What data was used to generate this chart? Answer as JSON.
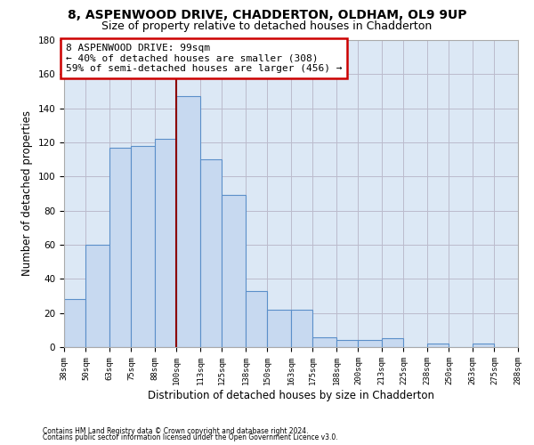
{
  "title1": "8, ASPENWOOD DRIVE, CHADDERTON, OLDHAM, OL9 9UP",
  "title2": "Size of property relative to detached houses in Chadderton",
  "xlabel": "Distribution of detached houses by size in Chadderton",
  "ylabel": "Number of detached properties",
  "footnote1": "Contains HM Land Registry data © Crown copyright and database right 2024.",
  "footnote2": "Contains public sector information licensed under the Open Government Licence v3.0.",
  "annotation_line1": "8 ASPENWOOD DRIVE: 99sqm",
  "annotation_line2": "← 40% of detached houses are smaller (308)",
  "annotation_line3": "59% of semi-detached houses are larger (456) →",
  "property_size": 99,
  "bin_edges": [
    38,
    50,
    63,
    75,
    88,
    100,
    113,
    125,
    138,
    150,
    163,
    175,
    188,
    200,
    213,
    225,
    238,
    250,
    263,
    275,
    288
  ],
  "bin_labels": [
    "38sqm",
    "50sqm",
    "63sqm",
    "75sqm",
    "88sqm",
    "100sqm",
    "113sqm",
    "125sqm",
    "138sqm",
    "150sqm",
    "163sqm",
    "175sqm",
    "188sqm",
    "200sqm",
    "213sqm",
    "225sqm",
    "238sqm",
    "250sqm",
    "263sqm",
    "275sqm",
    "288sqm"
  ],
  "bar_heights": [
    28,
    60,
    117,
    118,
    122,
    147,
    110,
    89,
    33,
    22,
    22,
    6,
    4,
    4,
    5,
    0,
    2,
    0,
    2,
    0
  ],
  "bar_color": "#c7d9f0",
  "bar_edge_color": "#5b8fc9",
  "vline_x": 100,
  "vline_color": "#8b0000",
  "annotation_box_color": "#ffffff",
  "annotation_box_edge": "#cc0000",
  "ylim": [
    0,
    180
  ],
  "yticks": [
    0,
    20,
    40,
    60,
    80,
    100,
    120,
    140,
    160,
    180
  ],
  "bg_color": "#ffffff",
  "plot_bg_color": "#dce8f5",
  "grid_color": "#bbbbcc",
  "title1_fontsize": 10,
  "title2_fontsize": 9,
  "xlabel_fontsize": 8.5,
  "ylabel_fontsize": 8.5,
  "annotation_fontsize": 8
}
